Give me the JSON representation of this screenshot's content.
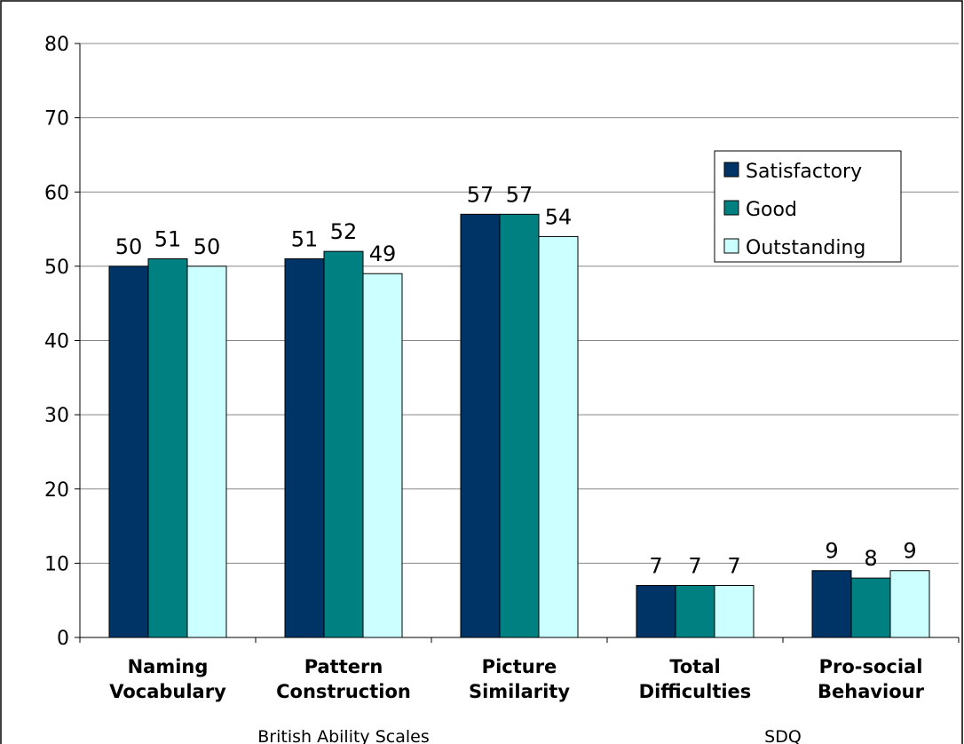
{
  "chart_data": {
    "type": "bar",
    "categories": [
      [
        "Naming",
        "Vocabulary"
      ],
      [
        "Pattern",
        "Construction"
      ],
      [
        "Picture",
        "Similarity"
      ],
      [
        "Total",
        "Difficulties"
      ],
      [
        "Pro-social",
        "Behaviour"
      ]
    ],
    "groups": [
      {
        "label": "British Ability Scales",
        "categories": [
          0,
          1,
          2
        ]
      },
      {
        "label": "SDQ",
        "categories": [
          3,
          4
        ]
      }
    ],
    "series": [
      {
        "name": "Satisfactory",
        "color": "#003366",
        "values": [
          50,
          51,
          57,
          7,
          9
        ]
      },
      {
        "name": "Good",
        "color": "#008080",
        "values": [
          51,
          52,
          57,
          7,
          8
        ]
      },
      {
        "name": "Outstanding",
        "color": "#ccffff",
        "values": [
          50,
          49,
          54,
          7,
          9
        ]
      }
    ],
    "yticks": [
      "0",
      "10",
      "20",
      "30",
      "40",
      "50",
      "60",
      "70",
      "80"
    ],
    "ylim": [
      0,
      80
    ],
    "grid": true,
    "legend_position": "top-right",
    "data_labels": true
  }
}
